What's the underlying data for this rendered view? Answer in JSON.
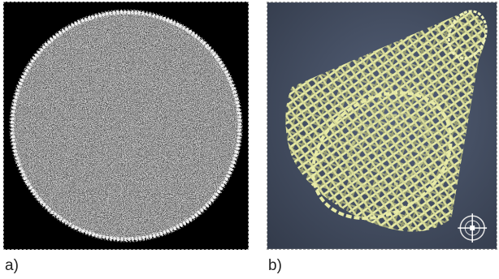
{
  "panels": [
    {
      "label": "a)",
      "image": "ct-cross-section-noisy-disk",
      "colors": {
        "background": "#000000",
        "disk": "#8f8f8f",
        "rim": "#f2f2f2"
      }
    },
    {
      "label": "b)",
      "image": "3d-lattice-cylinder-render",
      "colors": {
        "background": "#4a5568",
        "lattice": "#e7eaa6",
        "lattice_shadow": "#8e9266"
      },
      "icon": "orientation-gizmo-icon"
    }
  ]
}
